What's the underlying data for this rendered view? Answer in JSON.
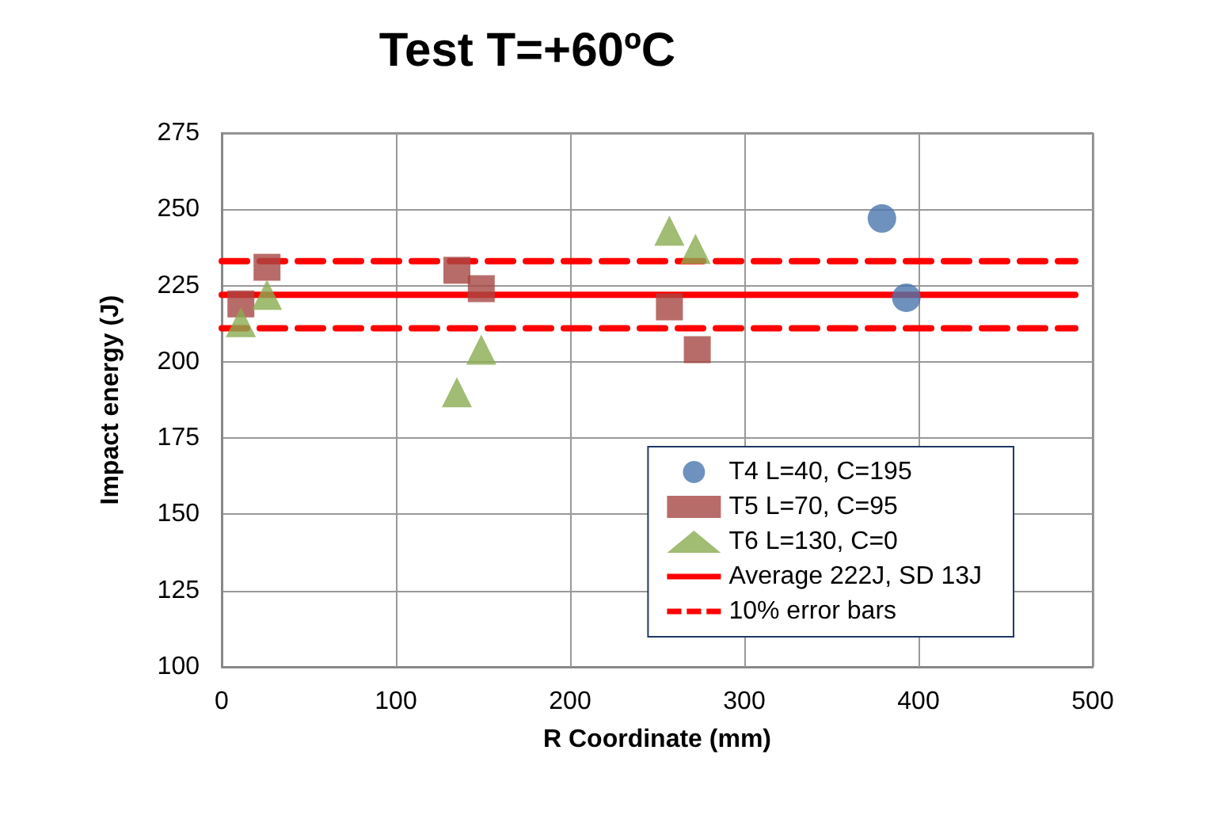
{
  "chart_data": {
    "type": "scatter",
    "title": "Test T=+60ºC",
    "xlabel": "R Coordinate (mm)",
    "ylabel": "Impact energy (J)",
    "xlim": [
      0,
      500
    ],
    "xticks": [
      0,
      100,
      200,
      300,
      400,
      500
    ],
    "ylim": [
      100,
      275
    ],
    "yticks": [
      100,
      125,
      150,
      175,
      200,
      225,
      250,
      275
    ],
    "grid": true,
    "legend": "bottom right",
    "series": [
      {
        "name": "T4 L=40, C=195",
        "marker": "circle",
        "color": "#4a76ad",
        "x": [
          379,
          393
        ],
        "values": [
          247,
          221
        ]
      },
      {
        "name": "T5 L=70, C=95",
        "marker": "square",
        "color": "#a64744",
        "x": [
          11,
          26,
          135,
          149,
          257,
          273
        ],
        "values": [
          219,
          231,
          230,
          224,
          218,
          204
        ]
      },
      {
        "name": "T6 L=130, C=0",
        "marker": "triangle",
        "color": "#8aab50",
        "x": [
          11,
          26,
          135,
          149,
          257,
          272
        ],
        "values": [
          213,
          222,
          190,
          204,
          243,
          237
        ]
      },
      {
        "name": "Average 222J, SD 13J",
        "type": "line",
        "marker": "none",
        "line_style": "solid",
        "color": "#ff0000",
        "x": [
          0,
          490
        ],
        "values": [
          222,
          222
        ]
      },
      {
        "name": "10% error bars",
        "type": "line",
        "marker": "none",
        "line_style": "dashed",
        "color": "#ff0000",
        "x": [
          0,
          490
        ],
        "values": [
          233,
          233
        ]
      },
      {
        "type": "line",
        "marker": "none",
        "line_style": "dashed",
        "color": "#ff0000",
        "x": [
          0,
          490
        ],
        "values": [
          211,
          211
        ]
      }
    ]
  }
}
